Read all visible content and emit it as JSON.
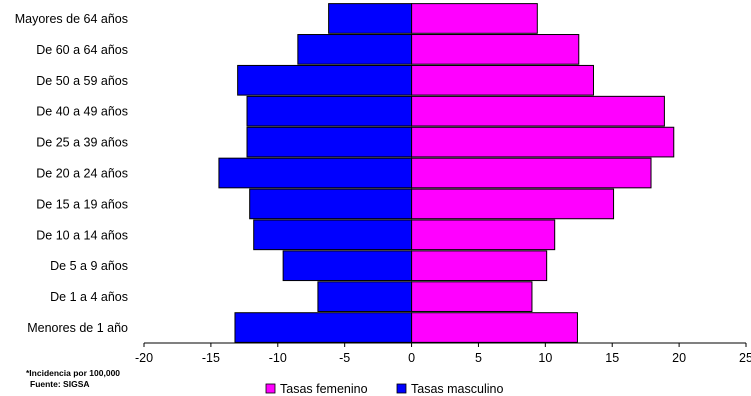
{
  "chart_data": {
    "type": "bar",
    "orientation": "horizontal",
    "layout": "population-pyramid",
    "categories": [
      "Menores de 1 año",
      "De 1 a 4 años",
      "De 5 a 9 años",
      "De 10 a 14 años",
      "De 15 a 19 años",
      "De 20 a 24 años",
      "De 25 a 39 años",
      "De 40 a 49 años",
      "De 50 a 59 años",
      "De 60 a 64 años",
      "Mayores de 64 años"
    ],
    "series": [
      {
        "name": "Tasas femenino",
        "color": "#FF00FF",
        "values": [
          12.4,
          9.0,
          10.1,
          10.7,
          15.1,
          17.9,
          19.6,
          18.9,
          13.6,
          12.5,
          9.4
        ]
      },
      {
        "name": "Tasas masculino",
        "color": "#0000FF",
        "values": [
          -13.2,
          -7.0,
          -9.6,
          -11.8,
          -12.1,
          -14.4,
          -12.3,
          -12.3,
          -13.0,
          -8.5,
          -6.2
        ]
      }
    ],
    "xlim": [
      -20,
      25
    ],
    "xticks": [
      "-20",
      "-15",
      "-10",
      "-5",
      "0",
      "5",
      "10",
      "15",
      "20",
      "25"
    ],
    "grid": false,
    "legend_position": "bottom"
  },
  "notes": {
    "line1": "*Incidencia por 100,000",
    "line2": "Fuente: SIGSA"
  }
}
